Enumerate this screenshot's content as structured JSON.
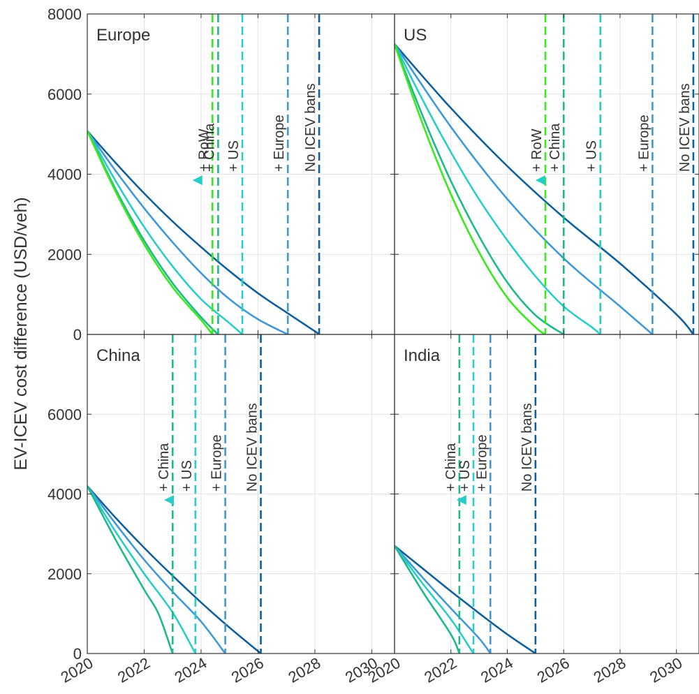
{
  "chart_data": {
    "type": "line",
    "ylabel": "EV-ICEV cost difference (USD/veh)",
    "xlim": [
      2020,
      2030.8
    ],
    "ylim": [
      0,
      8000
    ],
    "xticks": [
      2020,
      2022,
      2024,
      2026,
      2028,
      2030
    ],
    "yticks": [
      0,
      2000,
      4000,
      6000,
      8000
    ],
    "xtick_labels": [
      "2020",
      "2022",
      "2024",
      "2026",
      "2028",
      "2030"
    ],
    "ytick_labels": [
      "0",
      "2000",
      "4000",
      "6000",
      "8000"
    ],
    "grid": true,
    "panels": [
      {
        "title": "Europe",
        "start_value": 5080,
        "arrow": {
          "y": 3850,
          "x_from": 2028.15,
          "x_to": 2023.7
        },
        "series": [
          {
            "label": "No ICEV bans",
            "color": "#0e5f9c",
            "parity_year": 2028.15,
            "points": [
              [
                2020,
                5080
              ],
              [
                2021,
                4280
              ],
              [
                2022,
                3520
              ],
              [
                2023,
                2820
              ],
              [
                2024,
                2180
              ],
              [
                2025,
                1580
              ],
              [
                2026,
                1030
              ],
              [
                2027,
                550
              ],
              [
                2028,
                80
              ],
              [
                2028.15,
                0
              ]
            ]
          },
          {
            "label": "+ Europe",
            "color": "#4198d7",
            "parity_year": 2027.05,
            "points": [
              [
                2020,
                5080
              ],
              [
                2021,
                4080
              ],
              [
                2022,
                3150
              ],
              [
                2023,
                2300
              ],
              [
                2024,
                1530
              ],
              [
                2025,
                880
              ],
              [
                2026,
                380
              ],
              [
                2027.05,
                0
              ]
            ]
          },
          {
            "label": "+ US",
            "color": "#28cdc9",
            "parity_year": 2025.45,
            "points": [
              [
                2020,
                5080
              ],
              [
                2021,
                3830
              ],
              [
                2022,
                2680
              ],
              [
                2023,
                1700
              ],
              [
                2024,
                880
              ],
              [
                2025,
                280
              ],
              [
                2025.45,
                0
              ]
            ]
          },
          {
            "label": "+ China",
            "color": "#1eb98a",
            "parity_year": 2024.6,
            "points": [
              [
                2020,
                5080
              ],
              [
                2021,
                3620
              ],
              [
                2022,
                2340
              ],
              [
                2023,
                1280
              ],
              [
                2024,
                430
              ],
              [
                2024.6,
                0
              ]
            ]
          },
          {
            "label": "+ RoW",
            "color": "#39e91c",
            "parity_year": 2024.4,
            "points": [
              [
                2020,
                5080
              ],
              [
                2021,
                3560
              ],
              [
                2022,
                2250
              ],
              [
                2023,
                1180
              ],
              [
                2024,
                360
              ],
              [
                2024.4,
                0
              ]
            ]
          }
        ]
      },
      {
        "title": "US",
        "start_value": 7250,
        "arrow": {
          "y": 3850,
          "x_from": 2030.8,
          "x_to": 2025.0
        },
        "series": [
          {
            "label": "No ICEV bans",
            "color": "#0e5f9c",
            "parity_year": 2030.6,
            "points": [
              [
                2020,
                7250
              ],
              [
                2022,
                5650
              ],
              [
                2024,
                4200
              ],
              [
                2026,
                2920
              ],
              [
                2028,
                1770
              ],
              [
                2030,
                500
              ],
              [
                2030.6,
                0
              ]
            ]
          },
          {
            "label": "+ Europe",
            "color": "#4198d7",
            "parity_year": 2029.15,
            "points": [
              [
                2020,
                7250
              ],
              [
                2022,
                5180
              ],
              [
                2024,
                3380
              ],
              [
                2026,
                1900
              ],
              [
                2028,
                700
              ],
              [
                2029.15,
                0
              ]
            ]
          },
          {
            "label": "+ US",
            "color": "#28cdc9",
            "parity_year": 2027.3,
            "points": [
              [
                2020,
                7250
              ],
              [
                2021,
                5850
              ],
              [
                2022,
                4550
              ],
              [
                2023,
                3370
              ],
              [
                2024,
                2350
              ],
              [
                2025,
                1450
              ],
              [
                2026,
                700
              ],
              [
                2027,
                180
              ],
              [
                2027.3,
                0
              ]
            ]
          },
          {
            "label": "+ China",
            "color": "#1eb98a",
            "parity_year": 2026.0,
            "points": [
              [
                2020,
                7250
              ],
              [
                2021,
                5450
              ],
              [
                2022,
                3830
              ],
              [
                2023,
                2450
              ],
              [
                2024,
                1300
              ],
              [
                2025,
                480
              ],
              [
                2026.0,
                0
              ]
            ]
          },
          {
            "label": "+ RoW",
            "color": "#39e91c",
            "parity_year": 2025.35,
            "points": [
              [
                2020,
                7250
              ],
              [
                2021,
                5250
              ],
              [
                2022,
                3500
              ],
              [
                2023,
                2050
              ],
              [
                2024,
                920
              ],
              [
                2025,
                180
              ],
              [
                2025.35,
                0
              ]
            ]
          }
        ]
      },
      {
        "title": "China",
        "start_value": 4200,
        "arrow": {
          "y": 3850,
          "x_from": 2026.1,
          "x_to": 2022.7
        },
        "series": [
          {
            "label": "No ICEV bans",
            "color": "#0e5f9c",
            "parity_year": 2026.1,
            "points": [
              [
                2020,
                4200
              ],
              [
                2021,
                3400
              ],
              [
                2022,
                2650
              ],
              [
                2023,
                1950
              ],
              [
                2024,
                1280
              ],
              [
                2025,
                650
              ],
              [
                2026.1,
                0
              ]
            ]
          },
          {
            "label": "+ Europe",
            "color": "#4198d7",
            "parity_year": 2024.85,
            "points": [
              [
                2020,
                4200
              ],
              [
                2021,
                3250
              ],
              [
                2022,
                2350
              ],
              [
                2023,
                1550
              ],
              [
                2024,
                800
              ],
              [
                2024.85,
                0
              ]
            ]
          },
          {
            "label": "+ US",
            "color": "#28cdc9",
            "parity_year": 2023.8,
            "points": [
              [
                2020,
                4200
              ],
              [
                2021,
                3050
              ],
              [
                2022,
                2000
              ],
              [
                2023,
                1030
              ],
              [
                2023.8,
                0
              ]
            ]
          },
          {
            "label": "+ China",
            "color": "#1eb98a",
            "parity_year": 2023.0,
            "points": [
              [
                2020,
                4200
              ],
              [
                2021,
                2850
              ],
              [
                2022,
                1600
              ],
              [
                2022.5,
                1000
              ],
              [
                2023.0,
                0
              ]
            ]
          }
        ]
      },
      {
        "title": "India",
        "start_value": 2700,
        "arrow": {
          "y": 3850,
          "x_from": 2025.0,
          "x_to": 2022.2
        },
        "series": [
          {
            "label": "No ICEV bans",
            "color": "#0e5f9c",
            "parity_year": 2025.0,
            "points": [
              [
                2020,
                2700
              ],
              [
                2021,
                2130
              ],
              [
                2022,
                1560
              ],
              [
                2023,
                1010
              ],
              [
                2024,
                480
              ],
              [
                2025.0,
                0
              ]
            ]
          },
          {
            "label": "+ Europe",
            "color": "#4198d7",
            "parity_year": 2023.4,
            "points": [
              [
                2020,
                2700
              ],
              [
                2021,
                1900
              ],
              [
                2022,
                1130
              ],
              [
                2023,
                380
              ],
              [
                2023.4,
                0
              ]
            ]
          },
          {
            "label": "+ US",
            "color": "#28cdc9",
            "parity_year": 2022.8,
            "points": [
              [
                2020,
                2700
              ],
              [
                2021,
                1750
              ],
              [
                2022,
                860
              ],
              [
                2022.8,
                0
              ]
            ]
          },
          {
            "label": "+ China",
            "color": "#1eb98a",
            "parity_year": 2022.3,
            "points": [
              [
                2020,
                2700
              ],
              [
                2021,
                1550
              ],
              [
                2022,
                480
              ],
              [
                2022.3,
                0
              ]
            ]
          }
        ]
      }
    ]
  }
}
